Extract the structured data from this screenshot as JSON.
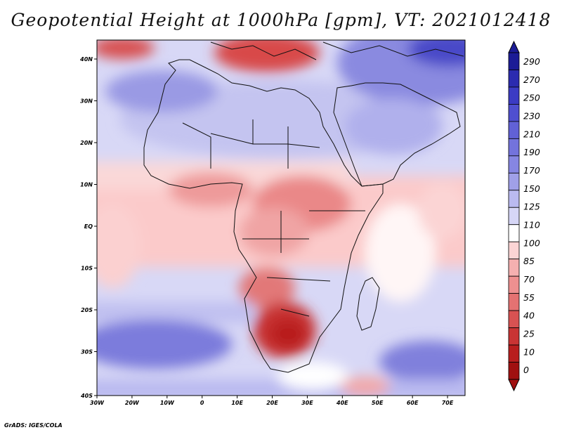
{
  "title": "Geopotential Height at 1000hPa [gpm], VT: 2021012418",
  "credit": "GrADS: IGES/COLA",
  "map": {
    "lon_range": [
      -30,
      75
    ],
    "lat_range": [
      -40,
      45
    ],
    "lat_ticks": [
      "40N",
      "30N",
      "20N",
      "10N",
      "EQ",
      "10S",
      "20S",
      "30S",
      "40S"
    ],
    "lon_ticks": [
      "30W",
      "20W",
      "10W",
      "0",
      "10E",
      "20E",
      "30E",
      "40E",
      "50E",
      "60E",
      "70E"
    ]
  },
  "colorbar": {
    "labels": [
      "290",
      "270",
      "250",
      "230",
      "210",
      "190",
      "170",
      "150",
      "125",
      "110",
      "100",
      "85",
      "70",
      "55",
      "40",
      "25",
      "10",
      "0"
    ],
    "colors": [
      "#1c1c96",
      "#2b2bb0",
      "#3b3bc4",
      "#4f4fd0",
      "#6161d6",
      "#7373dc",
      "#8686e2",
      "#a0a0e8",
      "#babaf0",
      "#d6d6f6",
      "#ffffff",
      "#fbd4d4",
      "#f5b0b0",
      "#ee9090",
      "#e47272",
      "#d85252",
      "#c93434",
      "#b81e1e",
      "#a01010"
    ]
  }
}
